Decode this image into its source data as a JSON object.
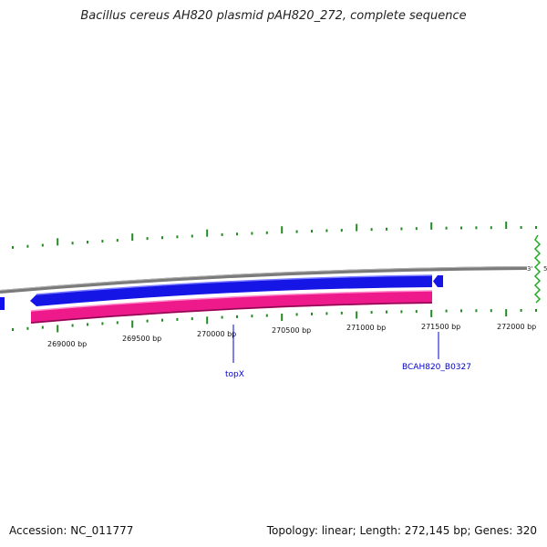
{
  "title": "Bacillus cereus AH820 plasmid pAH820_272, complete sequence",
  "footer": {
    "accession_label": "Accession:",
    "accession": "NC_011777",
    "topology_label": "Topology:",
    "topology": "linear",
    "length_label": "Length:",
    "length": "272,145 bp",
    "genes_label": "Genes:",
    "genes": "320"
  },
  "strand_ends": {
    "three_prime": "3'",
    "five_prime": "5'"
  },
  "position_ticks": [
    "269000 bp",
    "269500 bp",
    "270000 bp",
    "270500 bp",
    "271000 bp",
    "271500 bp",
    "272000 bp"
  ],
  "gene_labels": [
    {
      "name": "topX",
      "color": "#0000cc"
    },
    {
      "name": "BCAH820_B0327",
      "color": "#0000cc"
    }
  ],
  "colors": {
    "backbone": "#808080",
    "gene_track": "#1010ee",
    "cds_track": "#ee1188",
    "ticks": "#228b22"
  }
}
